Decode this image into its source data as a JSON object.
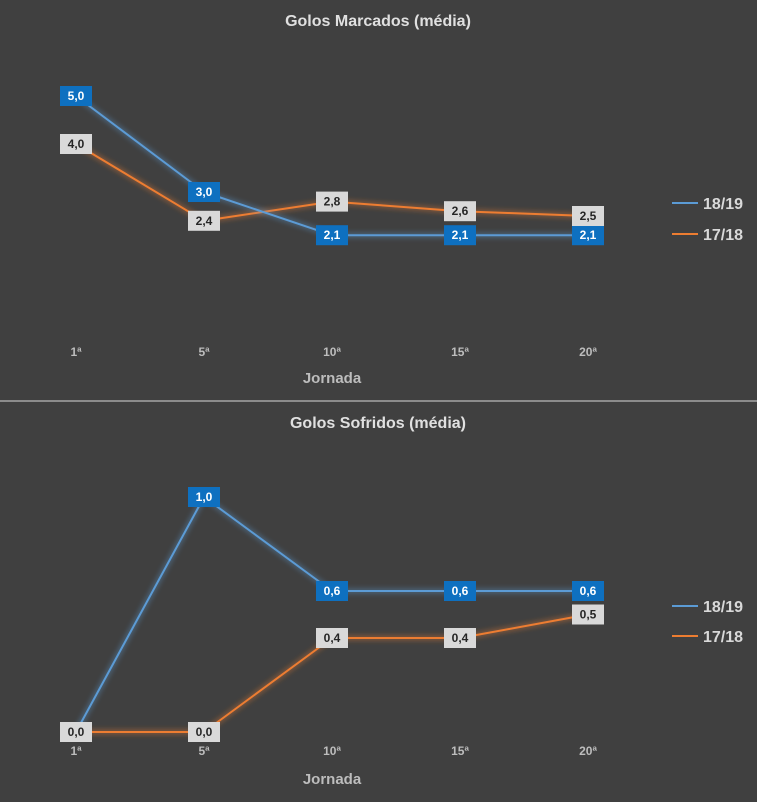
{
  "chart_data": [
    {
      "type": "line",
      "title": "Golos Marcados (média)",
      "xlabel": "Jornada",
      "ylabel": "",
      "categories": [
        "1ª",
        "5ª",
        "10ª",
        "15ª",
        "20ª"
      ],
      "ylim": [
        0,
        6
      ],
      "grid": false,
      "legend_position": "right",
      "series": [
        {
          "name": "18/19",
          "color": "#5b9bd5",
          "label_bg": "#0e70c0",
          "label_fg": "#ffffff",
          "values": [
            5.0,
            3.0,
            2.1,
            2.1,
            2.1
          ],
          "labels": [
            "5,0",
            "3,0",
            "2,1",
            "2,1",
            "2,1"
          ]
        },
        {
          "name": "17/18",
          "color": "#ed7d31",
          "label_bg": "#d9d9d9",
          "label_fg": "#262626",
          "values": [
            4.0,
            2.4,
            2.8,
            2.6,
            2.5
          ],
          "labels": [
            "4,0",
            "2,4",
            "2,8",
            "2,6",
            "2,5"
          ]
        }
      ]
    },
    {
      "type": "line",
      "title": "Golos Sofridos (média)",
      "xlabel": "Jornada",
      "ylabel": "",
      "categories": [
        "1ª",
        "5ª",
        "10ª",
        "15ª",
        "20ª"
      ],
      "ylim": [
        0,
        1.2
      ],
      "grid": false,
      "legend_position": "right",
      "series": [
        {
          "name": "18/19",
          "color": "#5b9bd5",
          "label_bg": "#0e70c0",
          "label_fg": "#ffffff",
          "values": [
            0.0,
            1.0,
            0.6,
            0.6,
            0.6
          ],
          "labels": [
            "0,0",
            "1,0",
            "0,6",
            "0,6",
            "0,6"
          ]
        },
        {
          "name": "17/18",
          "color": "#ed7d31",
          "label_bg": "#d9d9d9",
          "label_fg": "#262626",
          "values": [
            0.0,
            0.0,
            0.4,
            0.4,
            0.5
          ],
          "labels": [
            "0,0",
            "0,0",
            "0,4",
            "0,4",
            "0,5"
          ]
        }
      ]
    }
  ]
}
